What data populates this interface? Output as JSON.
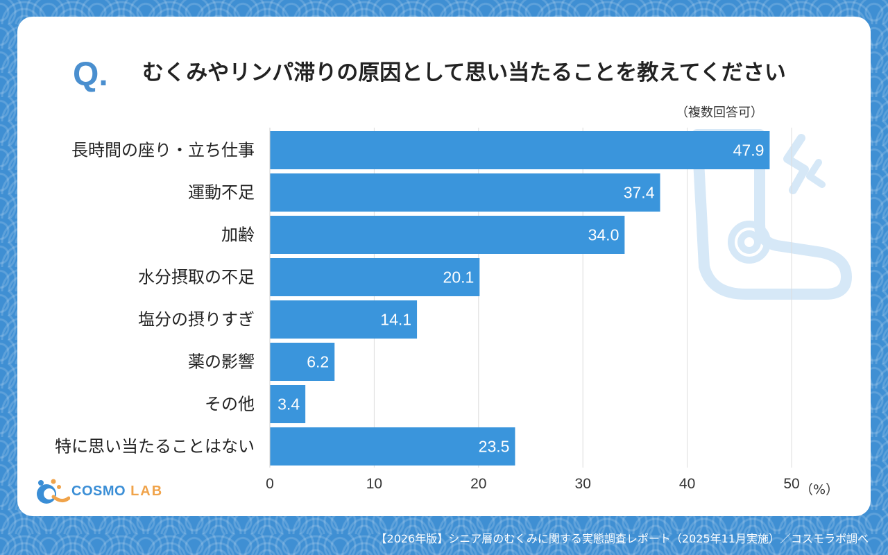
{
  "header": {
    "q_mark": "Q.",
    "title": "むくみやリンパ滞りの原因として思い当たることを教えてください",
    "note": "（複数回答可）"
  },
  "chart_data": {
    "type": "bar",
    "orientation": "horizontal",
    "categories": [
      "長時間の座り・立ち仕事",
      "運動不足",
      "加齢",
      "水分摂取の不足",
      "塩分の摂りすぎ",
      "薬の影響",
      "その他",
      "特に思い当たることはない"
    ],
    "values": [
      47.9,
      37.4,
      34.0,
      20.1,
      14.1,
      6.2,
      3.4,
      23.5
    ],
    "value_labels": [
      "47.9",
      "37.4",
      "34.0",
      "20.1",
      "14.1",
      "6.2",
      "3.4",
      "23.5"
    ],
    "xlim": [
      0,
      50
    ],
    "ticks": [
      0,
      10,
      20,
      30,
      40,
      50
    ],
    "tick_labels": [
      "0",
      "10",
      "20",
      "30",
      "40",
      "50"
    ],
    "unit_label": "（%）",
    "bar_color": "#3a95dc",
    "grid": true
  },
  "logo": {
    "cosmo": "COSMO",
    "lab": "LAB"
  },
  "footer": {
    "source": "【2026年版】シニア層のむくみに関する実態調査レポート（2025年11月実施）／コスモラボ調べ"
  },
  "colors": {
    "background": "#3f8fd3",
    "accent": "#4a8fcf",
    "bar": "#3a95dc",
    "logo_orange": "#f0a34a"
  }
}
